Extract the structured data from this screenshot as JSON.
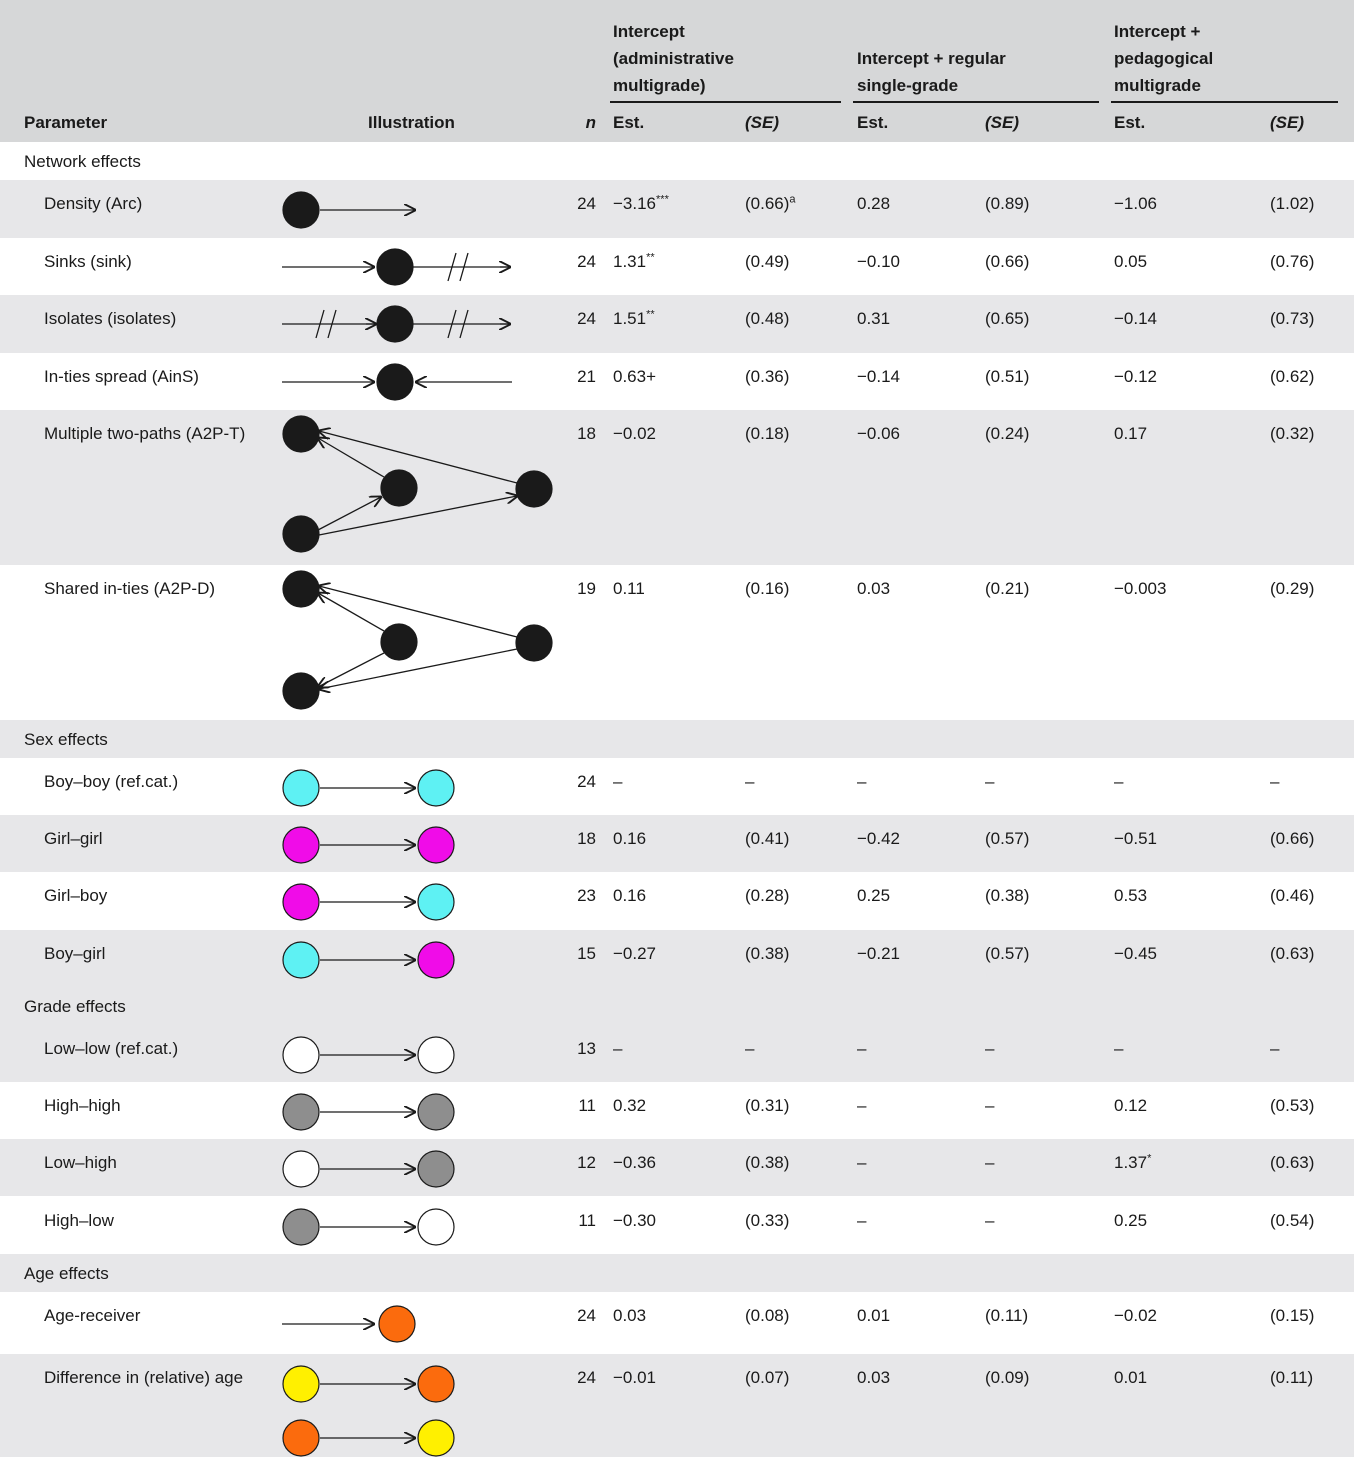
{
  "header": {
    "groups": [
      "Intercept (administrative multigrade)",
      "Intercept + regular single-grade",
      "Intercept + pedagogical multigrade"
    ],
    "group_lines": [
      [
        "Intercept",
        "(administrative",
        "multigrade)"
      ],
      [
        "Intercept + regular",
        "single-grade"
      ],
      [
        "Intercept +",
        "pedagogical",
        "multigrade"
      ]
    ],
    "columns": {
      "parameter": "Parameter",
      "illustration": "Illustration",
      "n": "n",
      "est": "Est.",
      "se": "(SE)"
    }
  },
  "colors": {
    "boy": "#5ef1f3",
    "girl": "#f00ce8",
    "high_grade": "#8e8e8e",
    "low_grade": "#ffffff",
    "older": "#fb6b0d",
    "younger": "#fff000",
    "node": "#1a1a1a",
    "shade": "#e7e7e9",
    "header": "#d6d7d8"
  },
  "rows": [
    {
      "type": "section",
      "label": "Network effects"
    },
    {
      "type": "param",
      "label": "Density (Arc)",
      "n": "24",
      "est1": "−3.16",
      "sup1": "***",
      "se1": "(0.66)",
      "se1_sup": "a",
      "est2": "0.28",
      "se2": "(0.89)",
      "est3": "−1.06",
      "se3": "(1.02)",
      "icon": "density-arc-icon"
    },
    {
      "type": "param",
      "label": "Sinks (sink)",
      "n": "24",
      "est1": "1.31",
      "sup1": "**",
      "se1": "(0.49)",
      "est2": "−0.10",
      "se2": "(0.66)",
      "est3": "0.05",
      "se3": "(0.76)",
      "icon": "sink-icon"
    },
    {
      "type": "param",
      "label": "Isolates (isolates)",
      "n": "24",
      "est1": "1.51",
      "sup1": "**",
      "se1": "(0.48)",
      "est2": "0.31",
      "se2": "(0.65)",
      "est3": "−0.14",
      "se3": "(0.73)",
      "icon": "isolate-icon"
    },
    {
      "type": "param",
      "label": "In-ties spread (AinS)",
      "n": "21",
      "est1": "0.63+",
      "se1": "(0.36)",
      "est2": "−0.14",
      "se2": "(0.51)",
      "est3": "−0.12",
      "se3": "(0.62)",
      "icon": "in-ties-spread-icon"
    },
    {
      "type": "param",
      "label": "Multiple two-paths (A2P-T)",
      "n": "18",
      "est1": "−0.02",
      "se1": "(0.18)",
      "est2": "−0.06",
      "se2": "(0.24)",
      "est3": "0.17",
      "se3": "(0.32)",
      "icon": "two-paths-icon"
    },
    {
      "type": "param",
      "label": "Shared in-ties (A2P-D)",
      "n": "19",
      "est1": "0.11",
      "se1": "(0.16)",
      "est2": "0.03",
      "se2": "(0.21)",
      "est3": "−0.003",
      "se3": "(0.29)",
      "icon": "shared-in-ties-icon"
    },
    {
      "type": "section",
      "label": "Sex effects"
    },
    {
      "type": "param",
      "label": "Boy–boy (ref.cat.)",
      "n": "24",
      "est1": "–",
      "se1": "–",
      "est2": "–",
      "se2": "–",
      "est3": "–",
      "se3": "–",
      "icon": "boy-boy-icon"
    },
    {
      "type": "param",
      "label": "Girl–girl",
      "n": "18",
      "est1": "0.16",
      "se1": "(0.41)",
      "est2": "−0.42",
      "se2": "(0.57)",
      "est3": "−0.51",
      "se3": "(0.66)",
      "icon": "girl-girl-icon"
    },
    {
      "type": "param",
      "label": "Girl–boy",
      "n": "23",
      "est1": "0.16",
      "se1": "(0.28)",
      "est2": "0.25",
      "se2": "(0.38)",
      "est3": "0.53",
      "se3": "(0.46)",
      "icon": "girl-boy-icon"
    },
    {
      "type": "param",
      "label": "Boy–girl",
      "n": "15",
      "est1": "−0.27",
      "se1": "(0.38)",
      "est2": "−0.21",
      "se2": "(0.57)",
      "est3": "−0.45",
      "se3": "(0.63)",
      "icon": "boy-girl-icon"
    },
    {
      "type": "section",
      "label": "Grade effects"
    },
    {
      "type": "param",
      "label": "Low–low (ref.cat.)",
      "n": "13",
      "est1": "–",
      "se1": "–",
      "est2": "–",
      "se2": "–",
      "est3": "–",
      "se3": "–",
      "icon": "low-low-icon"
    },
    {
      "type": "param",
      "label": "High–high",
      "n": "11",
      "est1": "0.32",
      "se1": "(0.31)",
      "est2": "–",
      "se2": "–",
      "est3": "0.12",
      "se3": "(0.53)",
      "icon": "high-high-icon"
    },
    {
      "type": "param",
      "label": "Low–high",
      "n": "12",
      "est1": "−0.36",
      "se1": "(0.38)",
      "est2": "–",
      "se2": "–",
      "est3": "1.37",
      "sup3": "*",
      "se3": "(0.63)",
      "icon": "low-high-icon"
    },
    {
      "type": "param",
      "label": "High–low",
      "n": "11",
      "est1": "−0.30",
      "se1": "(0.33)",
      "est2": "–",
      "se2": "–",
      "est3": "0.25",
      "se3": "(0.54)",
      "icon": "high-low-icon"
    },
    {
      "type": "section",
      "label": "Age effects"
    },
    {
      "type": "param",
      "label": "Age-receiver",
      "n": "24",
      "est1": "0.03",
      "se1": "(0.08)",
      "est2": "0.01",
      "se2": "(0.11)",
      "est3": "−0.02",
      "se3": "(0.15)",
      "icon": "age-receiver-icon"
    },
    {
      "type": "param",
      "label": "Difference in (relative) age",
      "n": "24",
      "est1": "−0.01",
      "se1": "(0.07)",
      "est2": "0.03",
      "se2": "(0.09)",
      "est3": "0.01",
      "se3": "(0.11)",
      "icon": "age-difference-icon"
    }
  ]
}
